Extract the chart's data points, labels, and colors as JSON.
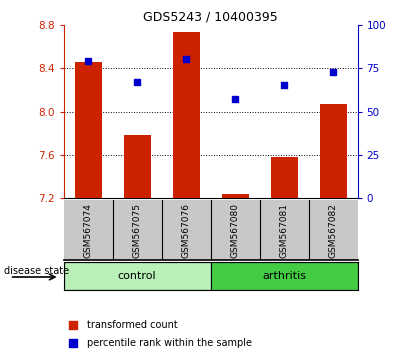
{
  "title": "GDS5243 / 10400395",
  "samples": [
    "GSM567074",
    "GSM567075",
    "GSM567076",
    "GSM567080",
    "GSM567081",
    "GSM567082"
  ],
  "bar_values": [
    8.46,
    7.78,
    8.73,
    7.24,
    7.58,
    8.07
  ],
  "percentile_values": [
    79,
    67,
    80,
    57,
    65,
    73
  ],
  "ylim_left": [
    7.2,
    8.8
  ],
  "ylim_right": [
    0,
    100
  ],
  "yticks_left": [
    7.2,
    7.6,
    8.0,
    8.4,
    8.8
  ],
  "yticks_right": [
    0,
    25,
    50,
    75,
    100
  ],
  "bar_color": "#cc2200",
  "dot_color": "#0000cc",
  "bar_bottom": 7.2,
  "grid_values": [
    7.6,
    8.0,
    8.4
  ],
  "n_control": 3,
  "n_arthritis": 3,
  "control_color": "#b8f0b8",
  "arthritis_color": "#44cc44",
  "label_bg_color": "#c8c8c8",
  "tick_color_left": "#cc2200",
  "tick_color_right": "#0000cc",
  "legend_bar_label": "transformed count",
  "legend_dot_label": "percentile rank within the sample",
  "disease_state_label": "disease state",
  "control_label": "control",
  "arthritis_label": "arthritis",
  "title_fontsize": 9,
  "tick_fontsize": 7.5,
  "label_fontsize": 6.5,
  "legend_fontsize": 7
}
